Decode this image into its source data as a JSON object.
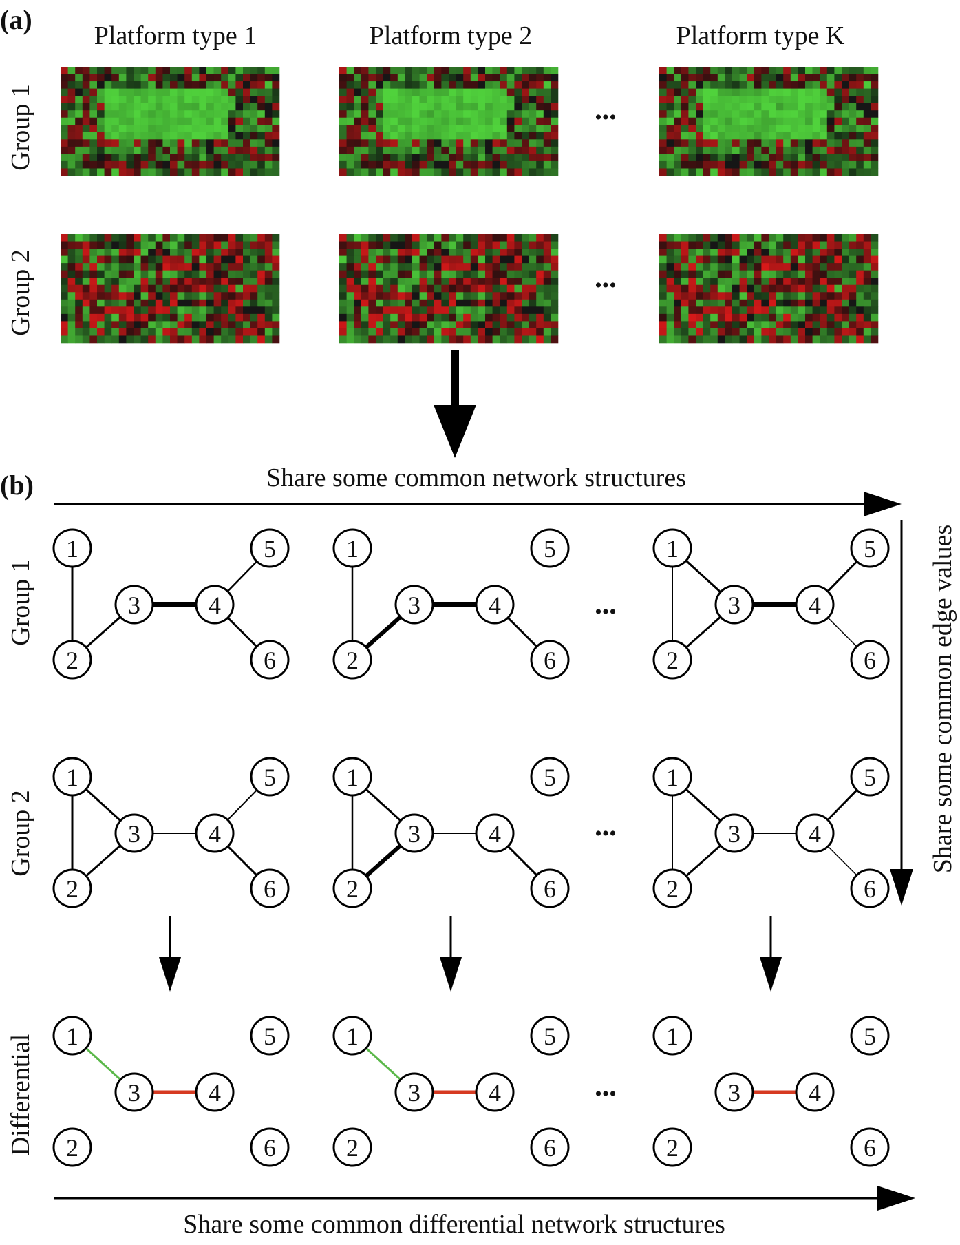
{
  "panel_a": {
    "label": "(a)",
    "columns": [
      "Platform type 1",
      "Platform type 2",
      "Platform type K"
    ],
    "rows": [
      "Group 1",
      "Group 2"
    ],
    "ellipsis": "•••"
  },
  "panel_b": {
    "label": "(b)",
    "top_arrow_text": "Share some common network structures",
    "right_arrow_text": "Share  some common edge values",
    "bottom_arrow_text": "Share some common differential network structures",
    "rows": [
      "Group 1",
      "Group 2",
      "Differential"
    ],
    "ellipsis": "•••",
    "node_labels": [
      "1",
      "2",
      "3",
      "4",
      "5",
      "6"
    ]
  },
  "colors": {
    "heatmap_green": "#3fcf3a",
    "heatmap_red": "#d01a1a",
    "edge_black": "#000000",
    "diff_up": "#d63a22",
    "diff_down": "#5bb84a"
  }
}
